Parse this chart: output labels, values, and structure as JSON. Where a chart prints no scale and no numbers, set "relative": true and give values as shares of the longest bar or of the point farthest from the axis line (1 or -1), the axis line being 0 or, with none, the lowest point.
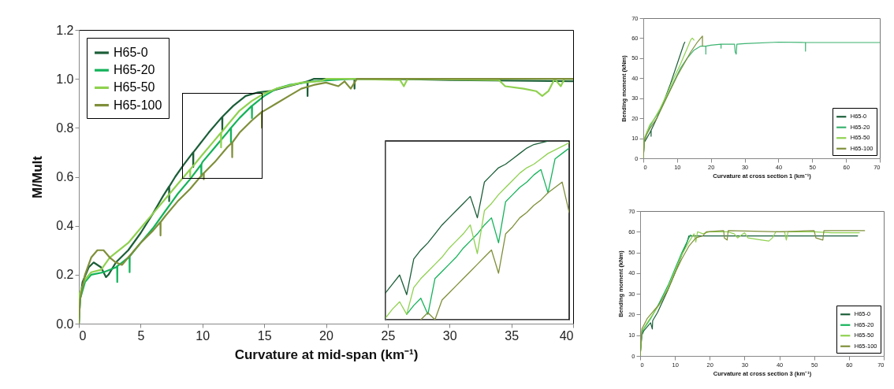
{
  "chart_data": [
    {
      "type": "line",
      "xlabel": "Curvature at mid-span (km⁻¹)",
      "ylabel": "M/Mult",
      "xlim": [
        0,
        40
      ],
      "ylim": [
        0,
        1.2
      ],
      "xticks": [
        0,
        5,
        10,
        15,
        20,
        25,
        30,
        35,
        40
      ],
      "yticks": [
        {
          "value": 0,
          "label": "0.0"
        },
        0.2,
        0.4,
        0.6,
        0.8,
        {
          "value": 1,
          "label": "1.0"
        },
        1.2
      ],
      "legend": "top left",
      "grid": false,
      "line_style": "solid",
      "series": [
        {
          "name": "H65-0",
          "color": "#1b5e38",
          "x": [
            0,
            0.1,
            0.3,
            0.8,
            1.2,
            1.8,
            2.2,
            2.4,
            3,
            4,
            5,
            6,
            6.8,
            7.3,
            7.31,
            7.32,
            7.8,
            8.5,
            9.25,
            9.26,
            9.27,
            10.5,
            11.6,
            11.61,
            11.62,
            12.5,
            13.5,
            14.5,
            15.5,
            17,
            18.5,
            18.51,
            18.52,
            19,
            21,
            22.3,
            22.31,
            22.32,
            25,
            30,
            40
          ],
          "values": [
            0,
            0.1,
            0.17,
            0.23,
            0.25,
            0.23,
            0.19,
            0.2,
            0.25,
            0.3,
            0.37,
            0.45,
            0.52,
            0.56,
            0.5,
            0.56,
            0.6,
            0.65,
            0.7,
            0.64,
            0.7,
            0.78,
            0.845,
            0.79,
            0.845,
            0.89,
            0.93,
            0.945,
            0.95,
            0.97,
            0.99,
            0.93,
            0.99,
            1.0,
            1.0,
            1.0,
            0.96,
            1.0,
            1.0,
            0.995,
            0.99
          ]
        },
        {
          "name": "H65-20",
          "color": "#14b35a",
          "x": [
            0,
            0.1,
            0.5,
            1,
            2,
            3,
            3.1,
            3.11,
            3.12,
            3.5,
            4,
            4.1,
            4.11,
            4.12,
            5,
            6,
            7,
            8,
            9,
            9.9,
            9.91,
            9.92,
            10,
            11,
            12,
            12.3,
            12.31,
            12.32,
            13,
            14,
            14.01,
            14.02,
            15,
            16,
            17,
            19,
            22,
            30,
            40
          ],
          "values": [
            0,
            0.1,
            0.17,
            0.2,
            0.21,
            0.23,
            0.235,
            0.17,
            0.235,
            0.25,
            0.27,
            0.275,
            0.21,
            0.275,
            0.33,
            0.39,
            0.46,
            0.53,
            0.59,
            0.65,
            0.6,
            0.65,
            0.66,
            0.72,
            0.78,
            0.8,
            0.74,
            0.8,
            0.84,
            0.89,
            0.84,
            0.89,
            0.93,
            0.96,
            0.975,
            0.99,
            1.0,
            1.0,
            1.0
          ]
        },
        {
          "name": "H65-50",
          "color": "#8fd14f",
          "x": [
            0,
            0.05,
            0.5,
            1,
            1.8,
            2.5,
            3,
            4,
            5,
            6,
            7,
            8,
            9,
            9.01,
            9.02,
            10,
            11,
            11.5,
            11.51,
            11.52,
            12,
            13,
            14,
            15,
            16,
            18,
            19.5,
            20,
            22,
            26,
            26.3,
            26.6,
            34,
            34.5,
            36,
            37,
            37.5,
            38,
            38.5,
            39,
            39.3,
            40
          ],
          "values": [
            0,
            0.12,
            0.18,
            0.21,
            0.22,
            0.27,
            0.29,
            0.33,
            0.39,
            0.45,
            0.51,
            0.57,
            0.63,
            0.6,
            0.63,
            0.69,
            0.75,
            0.78,
            0.72,
            0.78,
            0.81,
            0.87,
            0.91,
            0.94,
            0.96,
            0.985,
            0.99,
            1.0,
            1.0,
            0.995,
            0.97,
            1.0,
            0.995,
            0.97,
            0.96,
            0.95,
            0.93,
            0.95,
            1.0,
            0.97,
            1.0,
            1.0
          ]
        },
        {
          "name": "H65-100",
          "color": "#7f8f3a",
          "x": [
            0,
            0.1,
            0.5,
            1,
            1.5,
            2,
            2.5,
            3,
            3.5,
            4,
            5,
            6,
            6.6,
            6.61,
            6.62,
            7,
            8,
            9,
            10,
            10.1,
            10.11,
            10.12,
            11,
            12,
            12.4,
            12.41,
            12.42,
            13,
            14,
            14.8,
            14.81,
            14.82,
            15,
            16,
            17,
            18,
            19,
            20,
            21,
            21.5,
            22,
            22.5,
            24,
            40
          ],
          "values": [
            0,
            0.1,
            0.2,
            0.27,
            0.3,
            0.3,
            0.27,
            0.25,
            0.24,
            0.27,
            0.33,
            0.38,
            0.415,
            0.36,
            0.415,
            0.44,
            0.5,
            0.55,
            0.61,
            0.615,
            0.59,
            0.615,
            0.66,
            0.72,
            0.74,
            0.68,
            0.74,
            0.78,
            0.83,
            0.865,
            0.8,
            0.865,
            0.87,
            0.9,
            0.93,
            0.96,
            0.975,
            0.985,
            0.97,
            0.99,
            0.96,
            1.0,
            1.0,
            1.0
          ]
        }
      ]
    },
    {
      "type": "line",
      "relative": true,
      "categories": [
        null,
        null,
        null,
        null,
        null,
        null,
        null,
        null,
        null,
        null,
        null,
        null,
        null,
        null,
        null,
        null,
        null,
        null,
        null,
        null,
        null,
        null,
        null,
        null,
        null,
        null,
        null
      ],
      "legend": false,
      "grid": false,
      "line_style": "solid",
      "series": [
        {
          "color": "#1b5e38",
          "values": [
            0.15,
            0.2,
            0.25,
            0.14,
            0.34,
            0.39,
            0.43,
            0.48,
            0.53,
            0.57,
            0.61,
            0.65,
            0.69,
            0.57,
            0.77,
            0.81,
            0.85,
            0.87,
            0.9,
            0.93,
            0.96,
            0.98,
            0.99,
            1,
            null,
            null,
            null
          ]
        },
        {
          "color": "#14b35a",
          "values": [
            null,
            null,
            null,
            0.03,
            0.08,
            0.12,
            0.03,
            0.23,
            0.27,
            0.31,
            0.35,
            0.4,
            0.44,
            0.48,
            0.53,
            0.57,
            0.43,
            0.66,
            0.7,
            0.74,
            0.77,
            0.81,
            0.84,
            0.71,
            0.9,
            0.93,
            0.96
          ]
        },
        {
          "color": "#8fd14f",
          "values": [
            0.01,
            0.06,
            0.1,
            0.03,
            0.18,
            0.23,
            0.27,
            0.31,
            0.35,
            0.4,
            0.44,
            0.48,
            0.53,
            0.37,
            0.61,
            0.65,
            0.7,
            0.74,
            0.78,
            0.82,
            0.85,
            0.87,
            0.9,
            0.93,
            0.95,
            0.97,
            0.99
          ]
        },
        {
          "color": "#7f8f3a",
          "values": [
            null,
            null,
            null,
            null,
            null,
            0,
            0.04,
            0,
            0.11,
            0.15,
            0.19,
            0.23,
            0.27,
            0.31,
            0.35,
            0.39,
            0.26,
            0.48,
            0.52,
            0.57,
            0.6,
            0.64,
            0.67,
            0.71,
            0.74,
            0.77,
            0.6
          ]
        }
      ]
    },
    {
      "type": "line",
      "xlabel": "Curvature at cross section 1 (km⁻¹)",
      "ylabel": "Bending moment (kNm)",
      "xlim": [
        0,
        70
      ],
      "ylim": [
        0,
        70
      ],
      "xticks": [
        0,
        10,
        20,
        30,
        40,
        50,
        60,
        70
      ],
      "yticks": [
        0,
        10,
        20,
        30,
        40,
        50,
        60,
        70
      ],
      "legend": "bottom right",
      "grid": false,
      "line_style": "solid",
      "series": [
        {
          "name": "H65-0",
          "color": "#1b5e38",
          "x": [
            0,
            0.3,
            1,
            2,
            2.3,
            2.31,
            2.32,
            4,
            6,
            8,
            10,
            11,
            12,
            12.3
          ],
          "values": [
            0,
            8,
            10,
            13,
            14,
            11,
            14,
            20,
            28,
            37,
            47,
            52,
            57,
            58
          ]
        },
        {
          "name": "H65-20",
          "color": "#3cb371",
          "x": [
            0,
            0.3,
            1,
            2,
            3,
            5,
            7,
            9,
            11,
            13,
            15,
            17,
            18.5,
            18.51,
            18.52,
            20,
            23,
            23.01,
            23.02,
            27,
            27.2,
            27.5,
            27.7,
            30,
            40,
            48,
            48.01,
            48.02,
            60,
            70
          ],
          "values": [
            0,
            9,
            12,
            16,
            19,
            24,
            31,
            38,
            45,
            50,
            54,
            56,
            56,
            52,
            56,
            56.5,
            57,
            55,
            57,
            57,
            53,
            52,
            57,
            57.3,
            58,
            57.8,
            53.5,
            57.8,
            57.8,
            57.8
          ]
        },
        {
          "name": "H65-50",
          "color": "#8fd14f",
          "x": [
            0,
            0.3,
            1,
            2,
            3,
            5,
            7,
            9,
            11,
            13,
            14,
            14.5,
            15
          ],
          "values": [
            0,
            10,
            13,
            17,
            19,
            25,
            32,
            40,
            47,
            55,
            59,
            60,
            59
          ]
        },
        {
          "name": "H65-100",
          "color": "#7f8f3a",
          "x": [
            0,
            0.3,
            1,
            2,
            4,
            6,
            8,
            10,
            12,
            14,
            16,
            17,
            17.5,
            17.51,
            17.52
          ],
          "values": [
            0,
            9,
            12,
            15,
            20,
            27,
            34,
            41,
            47,
            53,
            58,
            60,
            61,
            56,
            61
          ]
        }
      ]
    },
    {
      "type": "line",
      "xlabel": "Curvature at cross section 3 (km⁻¹)",
      "ylabel": "Bending moment (kNm)",
      "xlim": [
        0,
        70
      ],
      "ylim": [
        0,
        70
      ],
      "xticks": [
        0,
        10,
        20,
        30,
        40,
        50,
        60,
        70
      ],
      "yticks": [
        0,
        10,
        20,
        30,
        40,
        50,
        60,
        70
      ],
      "legend": "bottom right",
      "grid": false,
      "line_style": "solid",
      "series": [
        {
          "name": "H65-0",
          "color": "#1b5e38",
          "x": [
            0,
            0.5,
            1,
            3,
            3.5,
            3.6,
            5,
            8,
            10,
            12,
            13.5,
            14,
            15,
            20,
            30,
            40,
            50,
            62.5
          ],
          "values": [
            0,
            10,
            12,
            16,
            13,
            17,
            21,
            32,
            40,
            49,
            55,
            58,
            58,
            58,
            58,
            58,
            58,
            58
          ]
        },
        {
          "name": "H65-20",
          "color": "#14b35a",
          "x": [
            0,
            0.5,
            1,
            3,
            5,
            8,
            10,
            12,
            14,
            14.5
          ],
          "values": [
            0,
            11,
            13,
            18,
            24,
            34,
            42,
            50,
            57,
            58.5
          ]
        },
        {
          "name": "H65-50",
          "color": "#8fd14f",
          "x": [
            0,
            0.5,
            2,
            4,
            6,
            8,
            10,
            12,
            14,
            15.5,
            16,
            16.5,
            18,
            20,
            25,
            27,
            28,
            30,
            31,
            35,
            37,
            38,
            39,
            41.5,
            42,
            42.5,
            50,
            55,
            63
          ],
          "values": [
            0,
            12,
            16,
            21,
            26,
            33,
            41,
            49,
            55,
            59,
            55,
            60,
            59,
            60,
            60,
            59,
            57,
            59.5,
            57,
            56,
            55.5,
            57,
            60,
            60,
            56,
            60,
            60,
            59.5,
            59.5
          ]
        },
        {
          "name": "H65-100",
          "color": "#7f8f3a",
          "x": [
            0,
            0.5,
            2,
            4,
            5.5,
            8,
            10,
            12,
            14,
            16,
            18,
            19,
            24,
            24.2,
            25,
            25.3,
            40,
            50,
            50.5,
            52.5,
            52.8,
            64.5
          ],
          "values": [
            0,
            13,
            18,
            22,
            25,
            32,
            40,
            47,
            53,
            57,
            58,
            60,
            60.5,
            57,
            56,
            60.5,
            60,
            60.5,
            57,
            56,
            60.5,
            60.5
          ]
        }
      ]
    }
  ]
}
